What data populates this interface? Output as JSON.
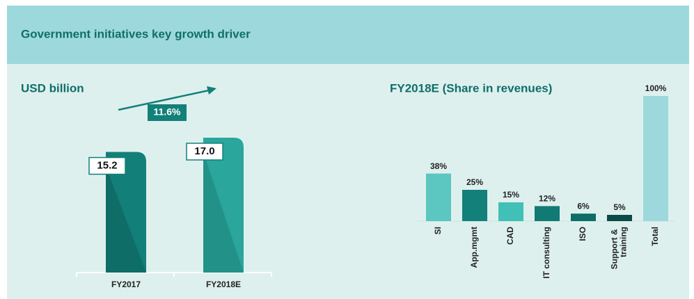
{
  "header": {
    "title": "Government initiatives key growth driver"
  },
  "chart_data": [
    {
      "type": "bar",
      "title": "USD billion",
      "categories": [
        "FY2017",
        "FY2018E"
      ],
      "values": [
        15.2,
        17.0
      ],
      "value_labels": [
        "15.2",
        "17.0"
      ],
      "colors": [
        "#127f78",
        "#2aa69c"
      ],
      "annotation": "11.6%"
    },
    {
      "type": "bar",
      "title": "FY2018E (Share in revenues)",
      "categories": [
        "SI",
        "App.mgmt",
        "CAD",
        "IT consulting",
        "ISO",
        "Support & training",
        "Total"
      ],
      "values": [
        38,
        25,
        15,
        12,
        6,
        5,
        100
      ],
      "value_labels": [
        "38%",
        "25%",
        "15%",
        "12%",
        "6%",
        "5%",
        "100%"
      ],
      "colors": [
        "#5cc6c0",
        "#13807a",
        "#40c0b6",
        "#107a73",
        "#0e6d67",
        "#0b4a46",
        "#9dd9dc"
      ]
    }
  ]
}
